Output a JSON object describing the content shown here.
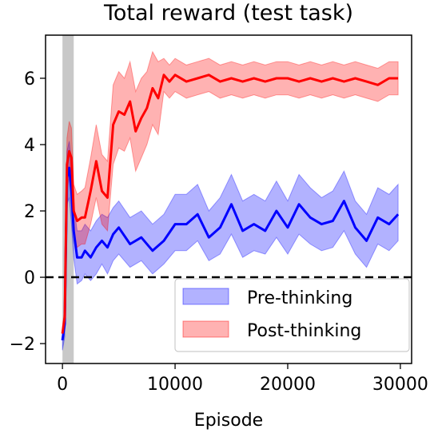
{
  "chart_data": {
    "type": "line",
    "title": "Total reward (test task)",
    "xlabel": "Episode",
    "ylabel": "",
    "xlim": [
      -1500,
      31000
    ],
    "ylim": [
      -2.6,
      7.3
    ],
    "x_ticks": [
      0,
      10000,
      20000,
      30000
    ],
    "x_tick_labels": [
      "0",
      "10000",
      "20000",
      "30000"
    ],
    "y_ticks": [
      -2,
      0,
      2,
      4,
      6
    ],
    "y_tick_labels": [
      "−2",
      "0",
      "2",
      "4",
      "6"
    ],
    "grid": false,
    "legend_position": "lower right",
    "shaded_region_x": [
      0,
      1000
    ],
    "reference_line": {
      "y": 0,
      "style": "dashed",
      "color": "#000000"
    },
    "series": [
      {
        "name": "Pre-thinking",
        "color": "#0000ff",
        "fill_color": "#0000ff",
        "x": [
          0,
          200,
          400,
          600,
          800,
          1000,
          1300,
          1700,
          2000,
          2500,
          3000,
          3500,
          4000,
          4500,
          5000,
          6000,
          7000,
          8000,
          9000,
          10000,
          11000,
          12000,
          13000,
          14000,
          15000,
          16000,
          17000,
          18000,
          19000,
          20000,
          21000,
          22000,
          23000,
          24000,
          25000,
          26000,
          27000,
          28000,
          29000,
          29800
        ],
        "values": [
          -1.9,
          -1.4,
          3.0,
          3.3,
          2.6,
          1.4,
          0.6,
          0.6,
          0.8,
          0.6,
          0.9,
          1.1,
          0.9,
          1.3,
          1.5,
          1.0,
          1.2,
          0.8,
          1.1,
          1.6,
          1.6,
          1.9,
          1.2,
          1.5,
          2.2,
          1.4,
          1.6,
          1.4,
          2.0,
          1.5,
          2.2,
          1.8,
          1.6,
          1.7,
          2.3,
          1.5,
          1.1,
          1.8,
          1.6,
          1.9
        ],
        "lower": [
          -2.2,
          -1.8,
          2.2,
          2.4,
          1.6,
          0.6,
          -0.2,
          -0.1,
          0.1,
          -0.1,
          0.1,
          0.4,
          0.1,
          0.5,
          0.7,
          0.3,
          0.5,
          0.1,
          0.4,
          0.8,
          0.8,
          1.1,
          0.5,
          0.7,
          1.3,
          0.6,
          0.8,
          0.7,
          1.2,
          0.7,
          1.3,
          1.0,
          0.8,
          0.9,
          1.4,
          0.7,
          0.3,
          1.0,
          0.8,
          1.1
        ],
        "upper": [
          -1.6,
          -1.0,
          3.8,
          4.1,
          3.5,
          2.2,
          1.4,
          1.4,
          1.6,
          1.4,
          1.7,
          1.9,
          1.8,
          2.1,
          2.3,
          1.8,
          2.0,
          1.6,
          1.9,
          2.5,
          2.5,
          2.8,
          2.0,
          2.4,
          3.1,
          2.3,
          2.5,
          2.3,
          2.9,
          2.3,
          3.1,
          2.7,
          2.4,
          2.6,
          3.2,
          2.3,
          1.9,
          2.7,
          2.5,
          2.8
        ]
      },
      {
        "name": "Post-thinking",
        "color": "#ff0000",
        "fill_color": "#ff0000",
        "x": [
          0,
          200,
          400,
          600,
          800,
          1000,
          1300,
          1700,
          2000,
          2500,
          3000,
          3500,
          4000,
          4500,
          5000,
          5500,
          6000,
          6500,
          7000,
          7500,
          8000,
          8500,
          9000,
          9500,
          10000,
          11000,
          12000,
          13000,
          14000,
          15000,
          16000,
          17000,
          18000,
          19000,
          20000,
          21000,
          22000,
          23000,
          24000,
          25000,
          26000,
          27000,
          28000,
          29000,
          29800
        ],
        "values": [
          -1.7,
          -1.2,
          3.4,
          3.8,
          3.6,
          2.0,
          1.7,
          1.8,
          1.8,
          2.6,
          3.5,
          2.6,
          2.4,
          4.6,
          5.0,
          4.9,
          5.3,
          4.4,
          4.8,
          5.1,
          5.7,
          5.4,
          6.1,
          5.9,
          6.1,
          5.9,
          6.0,
          6.1,
          5.9,
          6.0,
          5.9,
          6.0,
          5.9,
          6.0,
          6.0,
          5.9,
          6.0,
          5.9,
          6.0,
          5.9,
          6.0,
          5.9,
          5.8,
          6.0,
          6.0
        ],
        "lower": [
          -1.9,
          -1.5,
          2.6,
          3.0,
          2.8,
          1.2,
          0.9,
          1.0,
          1.0,
          1.6,
          2.4,
          1.6,
          1.4,
          3.4,
          3.9,
          3.8,
          4.2,
          3.2,
          3.6,
          4.0,
          4.6,
          4.3,
          5.6,
          5.4,
          5.6,
          5.4,
          5.5,
          5.6,
          5.4,
          5.5,
          5.4,
          5.5,
          5.4,
          5.5,
          5.5,
          5.4,
          5.5,
          5.4,
          5.5,
          5.4,
          5.5,
          5.4,
          5.3,
          5.5,
          5.5
        ],
        "upper": [
          -1.5,
          -0.9,
          4.2,
          4.7,
          4.5,
          2.8,
          2.5,
          2.6,
          2.7,
          3.6,
          4.6,
          3.7,
          3.5,
          5.8,
          6.2,
          6.0,
          6.5,
          5.6,
          6.0,
          6.2,
          6.8,
          6.5,
          6.6,
          6.4,
          6.6,
          6.4,
          6.5,
          6.6,
          6.4,
          6.5,
          6.4,
          6.5,
          6.4,
          6.5,
          6.5,
          6.4,
          6.5,
          6.4,
          6.5,
          6.4,
          6.5,
          6.4,
          6.3,
          6.5,
          6.5
        ]
      }
    ]
  }
}
